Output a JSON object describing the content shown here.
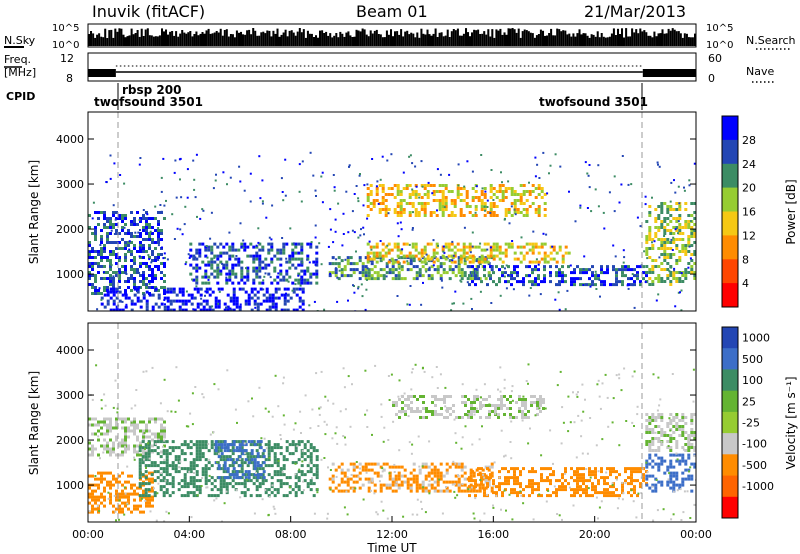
{
  "header": {
    "site": "Inuvik (fitACF)",
    "beam": "Beam 01",
    "date": "21/Mar/2013"
  },
  "top_panels": {
    "nsky": {
      "label": "N.Sky",
      "tick_top": "10^5",
      "tick_bottom": "10^0"
    },
    "nsearch": {
      "label": "N.Search",
      "tick_top": "10^5",
      "tick_bottom": "10^0"
    },
    "freq": {
      "label_line1": "Freq.",
      "label_line2": "[MHz]",
      "tick_top": "12",
      "tick_bottom": "8"
    },
    "nave": {
      "label": "Nave",
      "tick_top": "60",
      "tick_bottom": "0"
    },
    "cpid": {
      "label": "CPID",
      "segments": [
        {
          "name": "twofsound 3501",
          "start_hour": 0.0,
          "end_hour": 1.1
        },
        {
          "name": "rbsp 200",
          "start_hour": 1.1,
          "end_hour": 21.9
        },
        {
          "name": "twofsound 3501",
          "start_hour": 21.9,
          "end_hour": 24.0
        }
      ]
    }
  },
  "chart_data": [
    {
      "type": "heatmap",
      "panel": "power",
      "ylabel": "Slant Range [km]",
      "ylim": [
        180,
        4600
      ],
      "yticks": [
        "1000",
        "2000",
        "3000",
        "4000"
      ],
      "xlim": [
        0,
        24
      ],
      "colorbar": {
        "label": "Power [dB]",
        "ticks": [
          "4",
          "8",
          "12",
          "16",
          "20",
          "24",
          "28"
        ],
        "colors": [
          "#0000ff",
          "#2346b4",
          "#3c8c64",
          "#96cc32",
          "#f5c814",
          "#ff8c00",
          "#ff4600",
          "#ff0000"
        ]
      },
      "echo_regions": [
        {
          "t0": 0.0,
          "t1": 3.0,
          "r0": 600,
          "r1": 2400,
          "level": 24
        },
        {
          "t0": 0.5,
          "t1": 8.5,
          "r0": 200,
          "r1": 700,
          "level": 26
        },
        {
          "t0": 4.0,
          "t1": 9.0,
          "r0": 800,
          "r1": 1700,
          "level": 22
        },
        {
          "t0": 9.5,
          "t1": 16.0,
          "r0": 900,
          "r1": 1400,
          "level": 20
        },
        {
          "t0": 11.0,
          "t1": 19.0,
          "r0": 1300,
          "r1": 1700,
          "level": 10
        },
        {
          "t0": 11.0,
          "t1": 18.0,
          "r0": 2300,
          "r1": 3000,
          "level": 10
        },
        {
          "t0": 15.0,
          "t1": 22.0,
          "r0": 800,
          "r1": 1200,
          "level": 22
        },
        {
          "t0": 22.0,
          "t1": 24.0,
          "r0": 800,
          "r1": 2600,
          "level": 14
        }
      ]
    },
    {
      "type": "heatmap",
      "panel": "velocity",
      "ylabel": "Slant Range [km]",
      "xlabel": "Time UT",
      "ylim": [
        180,
        4600
      ],
      "yticks": [
        "1000",
        "2000",
        "3000",
        "4000"
      ],
      "xlim": [
        0,
        24
      ],
      "xticks": [
        "00:00",
        "04:00",
        "08:00",
        "12:00",
        "16:00",
        "20:00",
        "00:00"
      ],
      "colorbar": {
        "label": "Velocity [m s⁻¹]",
        "ticks": [
          "1000",
          "500",
          "100",
          "25",
          "-25",
          "-100",
          "-500",
          "-1000"
        ],
        "colors": [
          "#2346b4",
          "#3c6ec8",
          "#3c8c64",
          "#64b432",
          "#96cc32",
          "#c8c8c8",
          "#ff8c00",
          "#ff6400",
          "#ff0000"
        ]
      },
      "echo_regions": [
        {
          "t0": 0.0,
          "t1": 3.0,
          "r0": 1700,
          "r1": 2500,
          "level": 0
        },
        {
          "t0": 0.0,
          "t1": 2.5,
          "r0": 400,
          "r1": 1300,
          "level": -300
        },
        {
          "t0": 2.0,
          "t1": 9.0,
          "r0": 800,
          "r1": 2000,
          "level": 200
        },
        {
          "t0": 5.0,
          "t1": 7.0,
          "r0": 1200,
          "r1": 2000,
          "level": 700
        },
        {
          "t0": 9.5,
          "t1": 16.0,
          "r0": 900,
          "r1": 1500,
          "level": -150
        },
        {
          "t0": 12.0,
          "t1": 18.0,
          "r0": 2500,
          "r1": 3000,
          "level": 0
        },
        {
          "t0": 15.0,
          "t1": 22.0,
          "r0": 800,
          "r1": 1400,
          "level": -200
        },
        {
          "t0": 22.0,
          "t1": 24.0,
          "r0": 900,
          "r1": 1700,
          "level": 700
        },
        {
          "t0": 22.0,
          "t1": 24.0,
          "r0": 1800,
          "r1": 2600,
          "level": 0
        }
      ]
    }
  ]
}
